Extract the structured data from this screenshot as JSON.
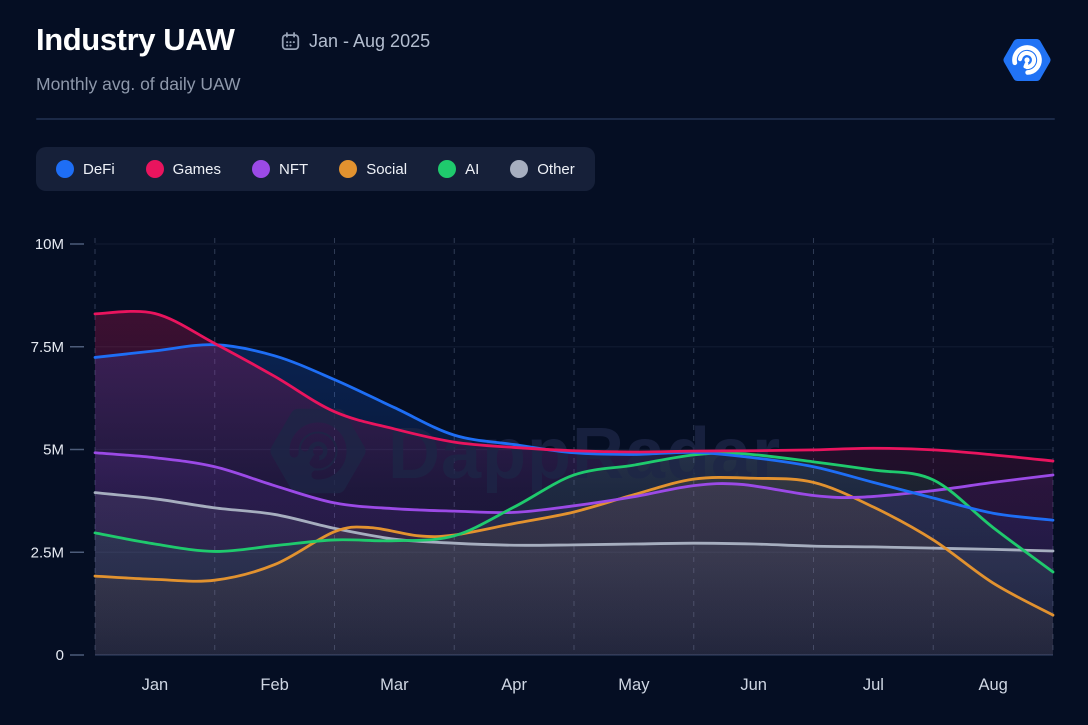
{
  "header": {
    "title": "Industry UAW",
    "date_range": "Jan - Aug 2025",
    "subtitle": "Monthly avg. of daily UAW",
    "brand_color": "#2173f5"
  },
  "watermark": {
    "text": "DappRadar"
  },
  "chart_data": {
    "type": "area",
    "title": "Industry UAW",
    "subtitle": "Monthly avg. of daily UAW",
    "date_range": "Jan - Aug 2025",
    "unit": "millions of UAW (M)",
    "categories": [
      "Jan",
      "Feb",
      "Mar",
      "Apr",
      "May",
      "Jun",
      "Jul",
      "Aug"
    ],
    "ylim": [
      0,
      10
    ],
    "y_ticks": [
      {
        "value": 0,
        "label": "0"
      },
      {
        "value": 2.5,
        "label": "2.5M"
      },
      {
        "value": 5,
        "label": "5M"
      },
      {
        "value": 7.5,
        "label": "7.5M"
      },
      {
        "value": 10,
        "label": "10M"
      }
    ],
    "grid": {
      "horizontal": "solid-faint",
      "vertical": "dashed at month boundaries"
    },
    "legend_position": "top-left",
    "series": [
      {
        "name": "DeFi",
        "color": "#1e6ef5",
        "monthly_avg_m": [
          7.4,
          7.28,
          6.02,
          5.12,
          4.88,
          4.8,
          4.2,
          3.45
        ],
        "curve_points": [
          [
            0,
            7.24
          ],
          [
            0.5,
            7.4
          ],
          [
            1,
            7.55
          ],
          [
            1.5,
            7.28
          ],
          [
            2,
            6.7
          ],
          [
            2.5,
            6.02
          ],
          [
            3,
            5.35
          ],
          [
            3.5,
            5.12
          ],
          [
            4,
            4.92
          ],
          [
            4.5,
            4.88
          ],
          [
            5,
            4.93
          ],
          [
            5.5,
            4.8
          ],
          [
            6,
            4.58
          ],
          [
            6.5,
            4.2
          ],
          [
            7,
            3.82
          ],
          [
            7.5,
            3.45
          ],
          [
            8,
            3.28
          ]
        ]
      },
      {
        "name": "Games",
        "color": "#e9145e",
        "monthly_avg_m": [
          8.31,
          6.78,
          5.5,
          5.05,
          4.94,
          4.97,
          5.03,
          4.87
        ],
        "curve_points": [
          [
            0,
            8.3
          ],
          [
            0.5,
            8.31
          ],
          [
            1,
            7.58
          ],
          [
            1.5,
            6.78
          ],
          [
            2,
            5.92
          ],
          [
            2.5,
            5.5
          ],
          [
            3,
            5.18
          ],
          [
            3.5,
            5.05
          ],
          [
            4,
            4.97
          ],
          [
            4.5,
            4.94
          ],
          [
            5,
            4.96
          ],
          [
            5.5,
            4.97
          ],
          [
            6,
            4.99
          ],
          [
            6.5,
            5.03
          ],
          [
            7,
            4.99
          ],
          [
            7.5,
            4.87
          ],
          [
            8,
            4.72
          ]
        ]
      },
      {
        "name": "NFT",
        "color": "#9b4ae6",
        "monthly_avg_m": [
          4.8,
          4.12,
          3.56,
          3.47,
          3.85,
          4.13,
          3.85,
          4.2
        ],
        "curve_points": [
          [
            0,
            4.92
          ],
          [
            0.5,
            4.8
          ],
          [
            1,
            4.58
          ],
          [
            1.5,
            4.12
          ],
          [
            2,
            3.7
          ],
          [
            2.5,
            3.56
          ],
          [
            3,
            3.5
          ],
          [
            3.5,
            3.47
          ],
          [
            4,
            3.63
          ],
          [
            4.5,
            3.85
          ],
          [
            5,
            4.12
          ],
          [
            5.4,
            4.15
          ],
          [
            6,
            3.88
          ],
          [
            6.4,
            3.84
          ],
          [
            7,
            4.0
          ],
          [
            7.5,
            4.2
          ],
          [
            8,
            4.38
          ]
        ]
      },
      {
        "name": "Social",
        "color": "#e2922f",
        "monthly_avg_m": [
          1.84,
          2.2,
          3.05,
          3.2,
          3.9,
          4.3,
          3.6,
          1.75
        ],
        "curve_points": [
          [
            0,
            1.92
          ],
          [
            0.5,
            1.84
          ],
          [
            1,
            1.82
          ],
          [
            1.5,
            2.2
          ],
          [
            2,
            3.0
          ],
          [
            2.3,
            3.1
          ],
          [
            2.7,
            2.9
          ],
          [
            3,
            2.92
          ],
          [
            3.5,
            3.2
          ],
          [
            4,
            3.48
          ],
          [
            4.5,
            3.9
          ],
          [
            5,
            4.28
          ],
          [
            5.5,
            4.3
          ],
          [
            6,
            4.2
          ],
          [
            6.5,
            3.6
          ],
          [
            7,
            2.8
          ],
          [
            7.5,
            1.75
          ],
          [
            8,
            0.97
          ]
        ]
      },
      {
        "name": "AI",
        "color": "#1fca6d",
        "monthly_avg_m": [
          2.7,
          2.66,
          2.79,
          3.6,
          4.62,
          4.88,
          4.5,
          3.1
        ],
        "curve_points": [
          [
            0,
            2.97
          ],
          [
            0.5,
            2.7
          ],
          [
            1,
            2.52
          ],
          [
            1.5,
            2.66
          ],
          [
            2,
            2.8
          ],
          [
            2.5,
            2.78
          ],
          [
            3,
            2.9
          ],
          [
            3.5,
            3.6
          ],
          [
            4,
            4.38
          ],
          [
            4.5,
            4.62
          ],
          [
            5,
            4.87
          ],
          [
            5.4,
            4.9
          ],
          [
            6,
            4.7
          ],
          [
            6.5,
            4.5
          ],
          [
            7,
            4.26
          ],
          [
            7.5,
            3.1
          ],
          [
            8,
            2.02
          ]
        ]
      },
      {
        "name": "Other",
        "color": "#a6aebf",
        "monthly_avg_m": [
          3.8,
          3.42,
          2.82,
          2.67,
          2.7,
          2.7,
          2.63,
          2.57
        ],
        "curve_points": [
          [
            0,
            3.95
          ],
          [
            0.5,
            3.8
          ],
          [
            1,
            3.58
          ],
          [
            1.5,
            3.42
          ],
          [
            2,
            3.08
          ],
          [
            2.5,
            2.82
          ],
          [
            3,
            2.72
          ],
          [
            3.5,
            2.67
          ],
          [
            4,
            2.68
          ],
          [
            4.5,
            2.7
          ],
          [
            5,
            2.72
          ],
          [
            5.5,
            2.7
          ],
          [
            6,
            2.65
          ],
          [
            6.5,
            2.63
          ],
          [
            7,
            2.6
          ],
          [
            7.5,
            2.57
          ],
          [
            8,
            2.53
          ]
        ]
      }
    ]
  }
}
